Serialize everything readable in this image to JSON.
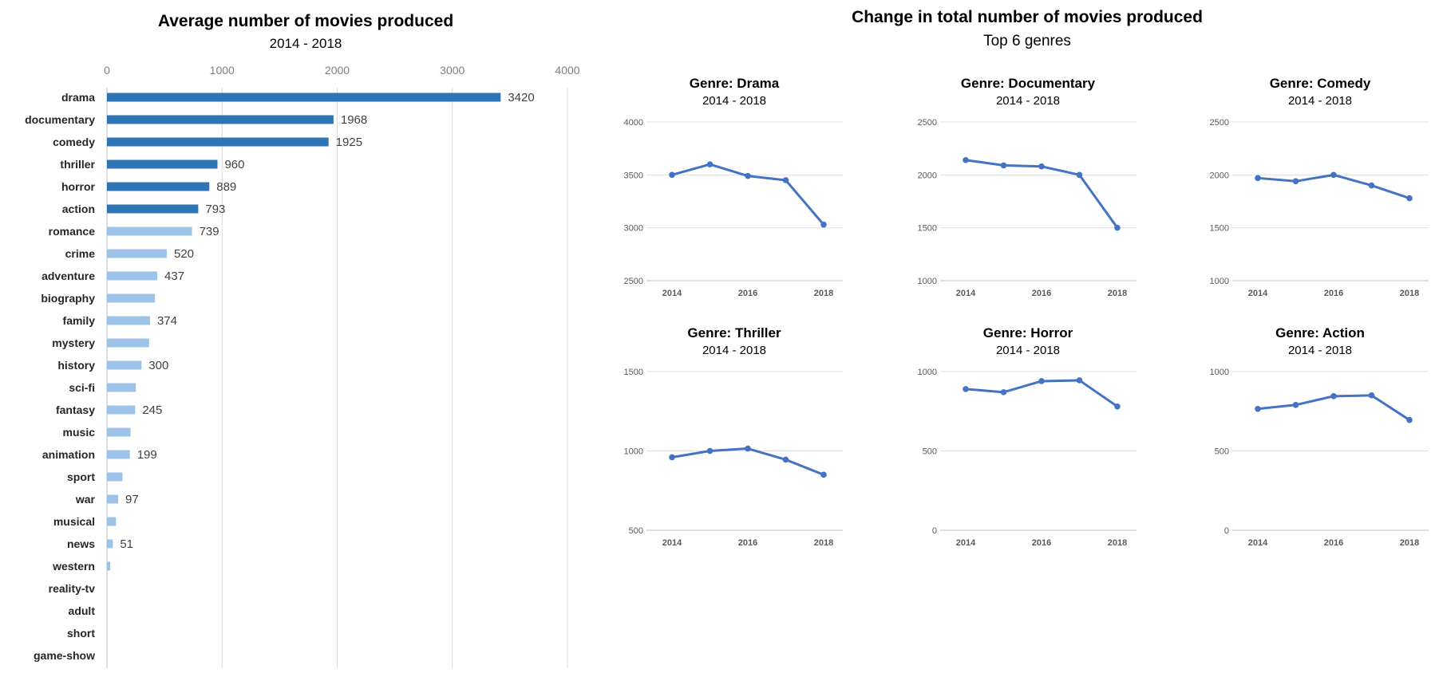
{
  "chart_data": [
    {
      "type": "bar",
      "orientation": "horizontal",
      "title": "Average number of movies produced",
      "subtitle": "2014 - 2018",
      "xlabel": "",
      "ylabel": "",
      "xlim": [
        0,
        4000
      ],
      "xticks": [
        0,
        1000,
        2000,
        3000,
        4000
      ],
      "xtick_labels": [
        "0",
        "1000",
        "2000",
        "3000",
        "4000"
      ],
      "grid": true,
      "colors": {
        "highlight": "#2e75b6",
        "base": "#9dc3e6"
      },
      "categories": [
        "drama",
        "documentary",
        "comedy",
        "thriller",
        "horror",
        "action",
        "romance",
        "crime",
        "adventure",
        "biography",
        "family",
        "mystery",
        "history",
        "sci-fi",
        "fantasy",
        "music",
        "animation",
        "sport",
        "war",
        "musical",
        "news",
        "western",
        "reality-tv",
        "adult",
        "short",
        "game-show"
      ],
      "values": [
        3420,
        1968,
        1925,
        960,
        889,
        793,
        739,
        520,
        437,
        417,
        374,
        366,
        300,
        250,
        245,
        205,
        199,
        135,
        97,
        78,
        51,
        28,
        0,
        0,
        0,
        0
      ],
      "data_labels": [
        "3420",
        "1968",
        "1925",
        "960",
        "889",
        "793",
        "739",
        "520",
        "437",
        "",
        "374",
        "",
        "300",
        "",
        "245",
        "",
        "199",
        "",
        "97",
        "",
        "51",
        "",
        "",
        "",
        "",
        ""
      ],
      "highlighted": [
        true,
        true,
        true,
        true,
        true,
        true,
        false,
        false,
        false,
        false,
        false,
        false,
        false,
        false,
        false,
        false,
        false,
        false,
        false,
        false,
        false,
        false,
        false,
        false,
        false,
        false
      ]
    },
    {
      "type": "line",
      "group_title": "Change in total number of movies produced",
      "group_subtitle": "Top 6 genres",
      "line_color": "#4472c4",
      "x": [
        2014,
        2015,
        2016,
        2017,
        2018
      ],
      "xtick_labels": [
        "2014",
        "2016",
        "2018"
      ],
      "panels": [
        {
          "title": "Genre: Drama",
          "subtitle": "2014 - 2018",
          "ylim": [
            2500,
            4000
          ],
          "yticks": [
            2500,
            3000,
            3500,
            4000
          ],
          "ytick_labels": [
            "2500",
            "3000",
            "3500",
            "4000"
          ],
          "values": [
            3500,
            3600,
            3490,
            3450,
            3030
          ]
        },
        {
          "title": "Genre: Documentary",
          "subtitle": "2014 - 2018",
          "ylim": [
            1000,
            2500
          ],
          "yticks": [
            1000,
            1500,
            2000,
            2500
          ],
          "ytick_labels": [
            "1000",
            "1500",
            "2000",
            "2500"
          ],
          "values": [
            2140,
            2090,
            2080,
            2000,
            1500
          ]
        },
        {
          "title": "Genre: Comedy",
          "subtitle": "2014 - 2018",
          "ylim": [
            1000,
            2500
          ],
          "yticks": [
            1000,
            1500,
            2000,
            2500
          ],
          "ytick_labels": [
            "1000",
            "1500",
            "2000",
            "2500"
          ],
          "values": [
            1970,
            1940,
            2000,
            1900,
            1780
          ]
        },
        {
          "title": "Genre: Thriller",
          "subtitle": "2014 - 2018",
          "ylim": [
            500,
            1500
          ],
          "yticks": [
            500,
            1000,
            1500
          ],
          "ytick_labels": [
            "500",
            "1000",
            "1500"
          ],
          "values": [
            960,
            1000,
            1015,
            945,
            850
          ]
        },
        {
          "title": "Genre: Horror",
          "subtitle": "2014 - 2018",
          "ylim": [
            0,
            1000
          ],
          "yticks": [
            0,
            500,
            1000
          ],
          "ytick_labels": [
            "0",
            "500",
            "1000"
          ],
          "values": [
            890,
            870,
            940,
            945,
            780
          ]
        },
        {
          "title": "Genre: Action",
          "subtitle": "2014 - 2018",
          "ylim": [
            0,
            1000
          ],
          "yticks": [
            0,
            500,
            1000
          ],
          "ytick_labels": [
            "0",
            "500",
            "1000"
          ],
          "values": [
            765,
            790,
            845,
            850,
            695
          ]
        }
      ]
    }
  ]
}
